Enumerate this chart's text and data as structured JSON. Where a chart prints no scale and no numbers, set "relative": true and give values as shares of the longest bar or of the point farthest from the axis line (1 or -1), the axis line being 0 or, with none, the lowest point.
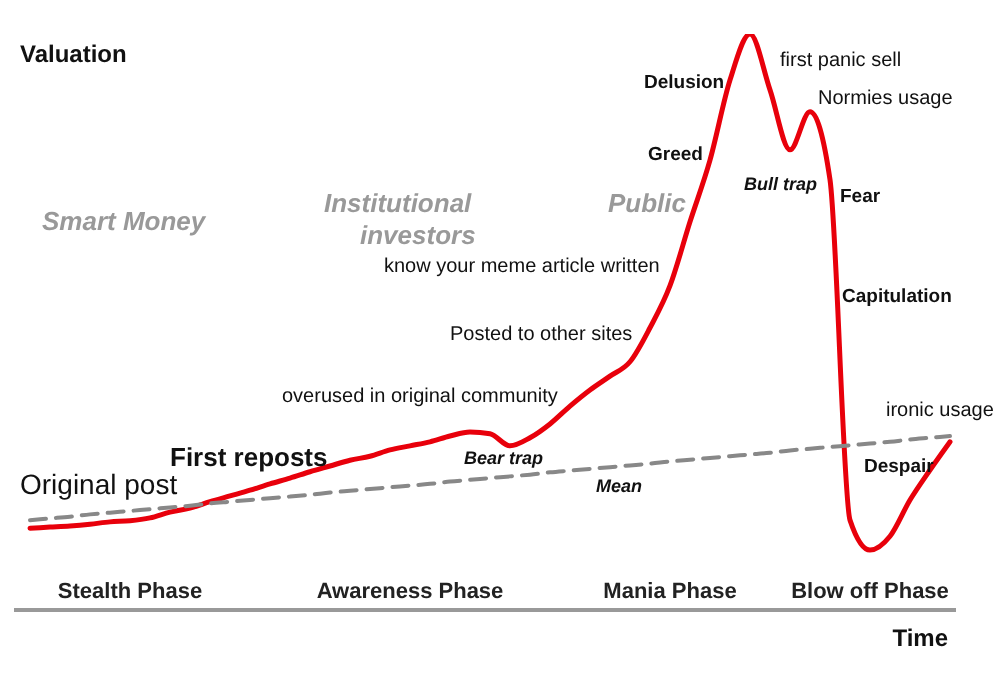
{
  "chart_data": {
    "type": "line",
    "relative": true,
    "xlabel": "Time",
    "ylabel": "Valuation",
    "tick_labels": "x",
    "categories": [
      null,
      null,
      null,
      null,
      null,
      "Stealth Phase",
      null,
      null,
      null,
      null,
      null,
      null,
      null,
      null,
      null,
      null,
      null,
      null,
      null,
      "Awareness Phase",
      null,
      null,
      null,
      null,
      null,
      null,
      null,
      null,
      null,
      null,
      null,
      null,
      "Mania Phase",
      null,
      null,
      null,
      null,
      null,
      null,
      null,
      null,
      null,
      "Blow off Phase",
      null,
      null,
      null,
      null
    ],
    "series": [
      {
        "color": "#e8000b",
        "line_style": "solid",
        "values": [
          0.142,
          0.144,
          0.146,
          0.149,
          0.153,
          0.155,
          0.16,
          0.17,
          0.177,
          0.188,
          0.198,
          0.208,
          0.219,
          0.229,
          0.24,
          0.25,
          0.26,
          0.267,
          0.278,
          0.285,
          0.292,
          0.302,
          0.309,
          0.306,
          0.285,
          0.299,
          0.323,
          0.354,
          0.382,
          0.406,
          0.431,
          0.49,
          0.563,
          0.674,
          0.781,
          0.92,
          1,
          0.903,
          0.799,
          0.865,
          0.747,
          0.156,
          0.104,
          0.128,
          0.191,
          0.243,
          0.292
        ]
      },
      {
        "color": "#888888",
        "line_style": "dashed",
        "values": [
          0.156,
          0.159,
          0.162,
          0.166,
          0.169,
          0.172,
          0.175,
          0.178,
          0.181,
          0.185,
          0.188,
          0.191,
          0.194,
          0.197,
          0.2,
          0.204,
          0.207,
          0.21,
          0.213,
          0.216,
          0.219,
          0.223,
          0.226,
          0.229,
          0.232,
          0.235,
          0.239,
          0.242,
          0.245,
          0.248,
          0.251,
          0.254,
          0.258,
          0.261,
          0.264,
          0.267,
          0.27,
          0.273,
          0.277,
          0.28,
          0.283,
          0.286,
          0.289,
          0.292,
          0.296,
          0.299,
          0.302
        ]
      }
    ],
    "annotations": [
      "Original post",
      "First reposts",
      "overused in original community",
      "Bear trap",
      "Posted to other sites",
      "know your meme article written",
      "Greed",
      "Delusion",
      "first panic sell",
      "Bull trap",
      "Normies usage",
      "Fear",
      "Capitulation",
      "Despair",
      "ironic usage",
      "Mean",
      "Smart Money",
      "Institutional investors",
      "Public"
    ]
  }
}
